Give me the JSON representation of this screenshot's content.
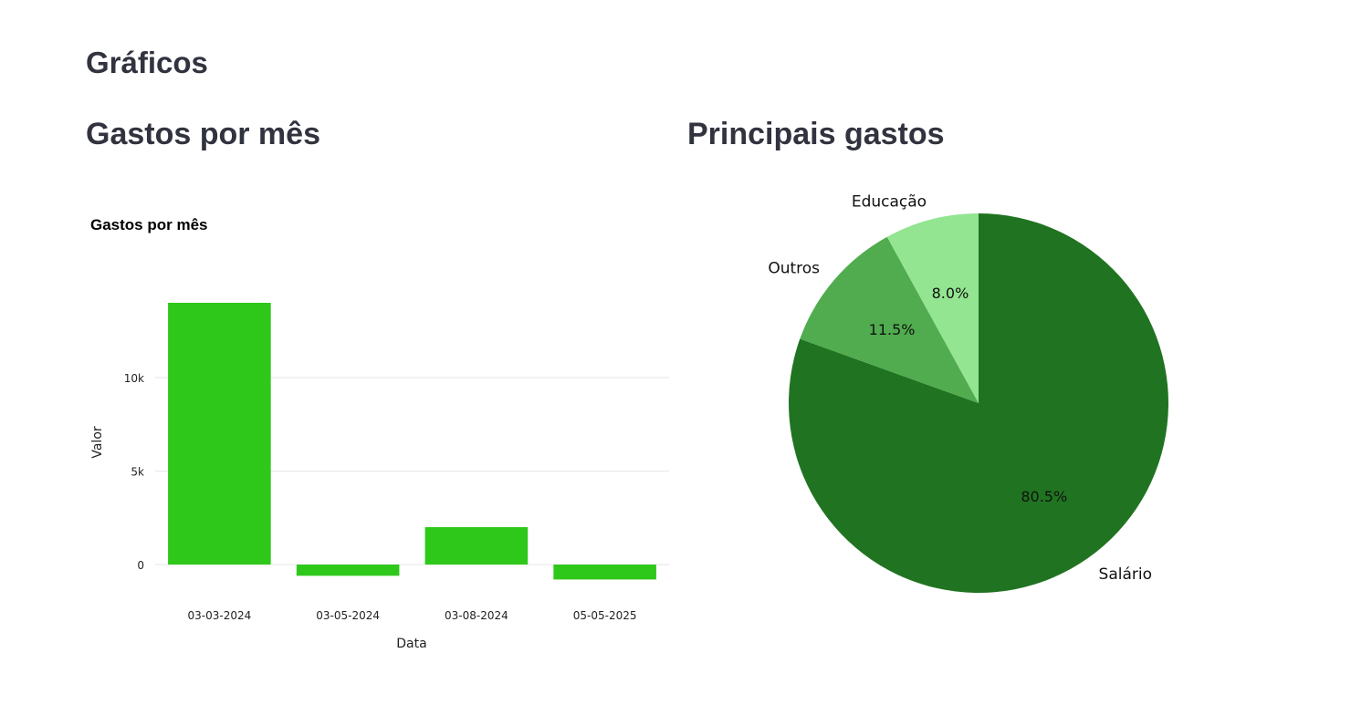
{
  "page": {
    "title": "Gráficos"
  },
  "left_section": {
    "title": "Gastos por mês"
  },
  "right_section": {
    "title": "Principais gastos"
  },
  "colors": {
    "bar": "#2ec81a",
    "grid": "#e6e6e6",
    "pie_salario": "#207421",
    "pie_outros": "#50ac4f",
    "pie_educacao": "#93e591"
  },
  "chart_data": [
    {
      "type": "bar",
      "title": "Gastos por mês",
      "xlabel": "Data",
      "ylabel": "Valor",
      "categories": [
        "03-03-2024",
        "03-05-2024",
        "03-08-2024",
        "05-05-2025"
      ],
      "values": [
        14000,
        -600,
        2000,
        -800
      ],
      "yticks": [
        0,
        5000,
        10000
      ],
      "ytick_labels": [
        "0",
        "5k",
        "10k"
      ],
      "ylim": [
        -1500,
        17000
      ],
      "grid": true
    },
    {
      "type": "pie",
      "title": "",
      "slices": [
        {
          "label": "Salário",
          "value": 80.5,
          "pct_label": "80.5%",
          "color": "#207421"
        },
        {
          "label": "Outros",
          "value": 11.5,
          "pct_label": "11.5%",
          "color": "#50ac4f"
        },
        {
          "label": "Educação",
          "value": 8.0,
          "pct_label": "8.0%",
          "color": "#93e591"
        }
      ]
    }
  ]
}
